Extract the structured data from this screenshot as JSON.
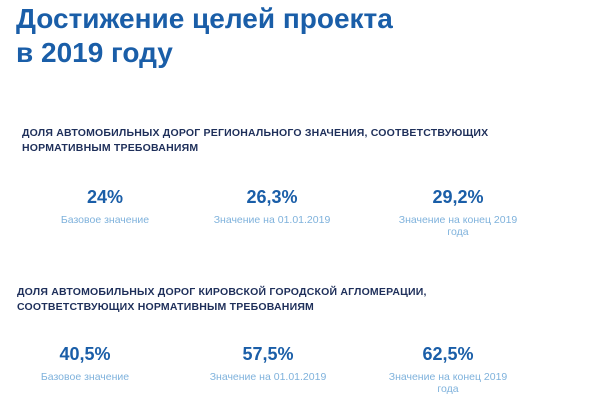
{
  "title_line1": "Достижение целей проекта",
  "title_line2": "в 2019 году",
  "sections": [
    {
      "heading_line1": "ДОЛЯ АВТОМОБИЛЬНЫХ ДОРОГ РЕГИОНАЛЬНОГО ЗНАЧЕНИЯ, СООТВЕТСТВУЮЩИХ",
      "heading_line2": "НОРМАТИВНЫМ ТРЕБОВАНИЯМ",
      "stats": [
        {
          "value": "24%",
          "caption_line1": "Базовое значение",
          "caption_line2": ""
        },
        {
          "value": "26,3%",
          "caption_line1": "Значение на 01.01.2019",
          "caption_line2": ""
        },
        {
          "value": "29,2%",
          "caption_line1": "Значение на конец 2019",
          "caption_line2": "года"
        }
      ]
    },
    {
      "heading_line1": "ДОЛЯ АВТОМОБИЛЬНЫХ ДОРОГ КИРОВСКОЙ ГОРОДСКОЙ АГЛОМЕРАЦИИ,",
      "heading_line2": "СООТВЕТСТВУЮЩИХ НОРМАТИВНЫМ ТРЕБОВАНИЯМ",
      "stats": [
        {
          "value": "40,5%",
          "caption_line1": "Базовое значение",
          "caption_line2": ""
        },
        {
          "value": "57,5%",
          "caption_line1": "Значение на 01.01.2019",
          "caption_line2": ""
        },
        {
          "value": "62,5%",
          "caption_line1": "Значение на конец 2019",
          "caption_line2": "года"
        }
      ]
    }
  ],
  "colors": {
    "title": "#1a5ea8",
    "heading": "#1e2f5a",
    "value": "#1a5ea8",
    "caption": "#7fb2dc"
  }
}
